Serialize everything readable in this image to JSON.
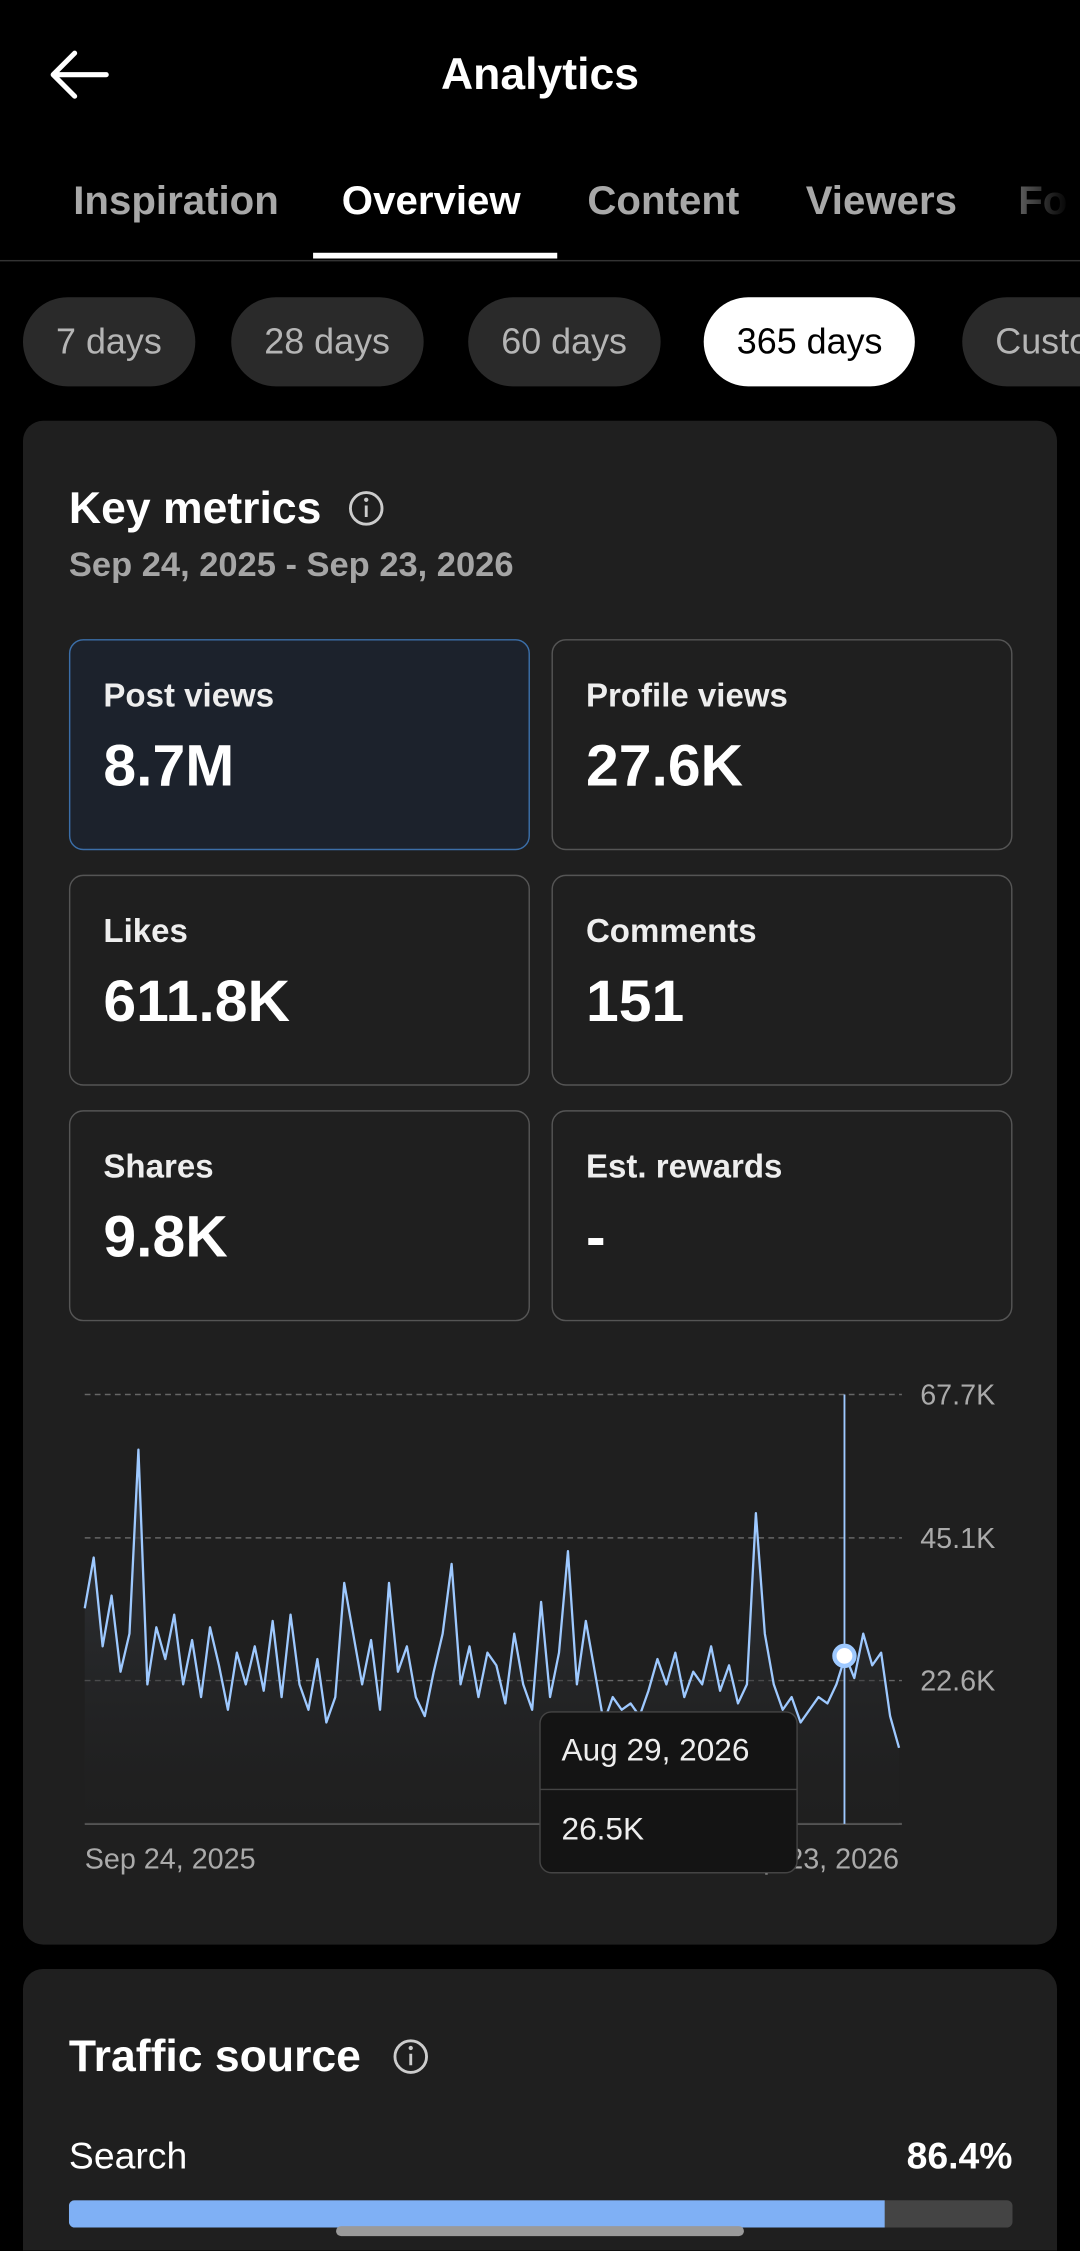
{
  "header": {
    "title": "Analytics"
  },
  "tabs": {
    "items": [
      "Inspiration",
      "Overview",
      "Content",
      "Viewers",
      "Followers"
    ],
    "selected": 1
  },
  "periods": {
    "items": [
      "7 days",
      "28 days",
      "60 days",
      "365 days",
      "Custom"
    ],
    "selected": 3
  },
  "key_metrics": {
    "title": "Key metrics",
    "date_range": "Sep 24, 2025 - Sep 23, 2026",
    "selected": 0,
    "cards": [
      {
        "label": "Post views",
        "value": "8.7M"
      },
      {
        "label": "Profile views",
        "value": "27.6K"
      },
      {
        "label": "Likes",
        "value": "611.8K"
      },
      {
        "label": "Comments",
        "value": "151"
      },
      {
        "label": "Shares",
        "value": "9.8K"
      },
      {
        "label": "Est. rewards",
        "value": "-"
      }
    ]
  },
  "chart_data": {
    "type": "line",
    "color": "#9ec9ff",
    "grid": true,
    "ylim": [
      0,
      67700
    ],
    "yticks": [
      {
        "value": 22600,
        "label": "22.6K"
      },
      {
        "value": 45100,
        "label": "45.1K"
      },
      {
        "value": 67700,
        "label": "67.7K"
      }
    ],
    "x_labels": [
      "Sep 24, 2025",
      "Sep 23, 2026"
    ],
    "values": [
      34000,
      42000,
      28000,
      36000,
      24000,
      30000,
      59000,
      22000,
      31000,
      26000,
      33000,
      22000,
      29000,
      20000,
      31000,
      25000,
      18000,
      27000,
      22000,
      28000,
      21000,
      32000,
      20000,
      33000,
      22000,
      18000,
      26000,
      16000,
      20000,
      38000,
      30000,
      22000,
      29000,
      18000,
      38000,
      24000,
      28000,
      20000,
      17000,
      24000,
      30000,
      41000,
      22000,
      28000,
      20000,
      27000,
      25000,
      19000,
      30000,
      22000,
      18000,
      35000,
      20000,
      27000,
      43000,
      22000,
      32000,
      24000,
      16000,
      20000,
      18000,
      19000,
      17000,
      21000,
      26000,
      22000,
      27000,
      20000,
      24000,
      22000,
      28000,
      21000,
      25000,
      19000,
      22000,
      49000,
      30000,
      22000,
      18000,
      20000,
      16000,
      18000,
      20000,
      19000,
      22000,
      26500,
      23000,
      30000,
      25000,
      27000,
      17000,
      12000
    ],
    "tooltip": {
      "date": "Aug 29, 2026",
      "value": 26500,
      "label": "26.5K"
    }
  },
  "traffic_source": {
    "title": "Traffic source",
    "items": [
      {
        "name": "Search",
        "value": 86.4,
        "label": "86.4%"
      }
    ]
  }
}
